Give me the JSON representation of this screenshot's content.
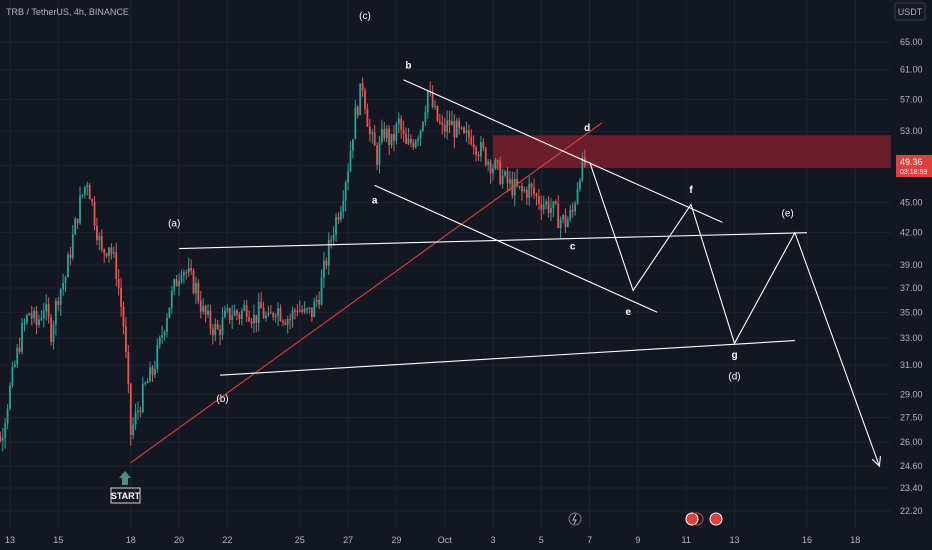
{
  "header": {
    "symbol_line": "TRB / TetherUS, 4h, BINANCE"
  },
  "price_axis": {
    "currency": "USDT",
    "current_price": "49.36",
    "countdown": "03:18:59"
  },
  "colors": {
    "background": "#131722",
    "grid": "#1f2330",
    "up": "#26a69a",
    "down": "#ef5350",
    "zone": "#7a1f2b",
    "trendline": "#e0413f",
    "pattern": "#ffffff",
    "start_arrow": "#4f8f77"
  },
  "chart_data": {
    "type": "candlestick",
    "timeframe": "4h",
    "log_scale": true,
    "ylim": [
      21.5,
      70
    ],
    "x_ticks": [
      {
        "label": "13",
        "day": 13
      },
      {
        "label": "15",
        "day": 15
      },
      {
        "label": "18",
        "day": 18
      },
      {
        "label": "20",
        "day": 20
      },
      {
        "label": "22",
        "day": 22
      },
      {
        "label": "25",
        "day": 25
      },
      {
        "label": "27",
        "day": 27
      },
      {
        "label": "29",
        "day": 29
      },
      {
        "label": "Oct",
        "day": 31
      },
      {
        "label": "3",
        "day": 33
      },
      {
        "label": "5",
        "day": 35
      },
      {
        "label": "7",
        "day": 37
      },
      {
        "label": "9",
        "day": 39
      },
      {
        "label": "11",
        "day": 41
      },
      {
        "label": "13",
        "day": 43
      },
      {
        "label": "16",
        "day": 46
      },
      {
        "label": "18",
        "day": 48
      }
    ],
    "y_ticks": [
      "65.00",
      "61.00",
      "57.00",
      "53.00",
      "49.00",
      "45.00",
      "42.00",
      "39.00",
      "37.00",
      "35.00",
      "33.00",
      "31.00",
      "29.00",
      "27.50",
      "26.00",
      "24.60",
      "23.40",
      "22.20"
    ],
    "price_path": [
      {
        "day": 12.0,
        "price": 31.5
      },
      {
        "day": 12.3,
        "price": 28.0
      },
      {
        "day": 12.6,
        "price": 26.0
      },
      {
        "day": 12.9,
        "price": 28.5
      },
      {
        "day": 13.2,
        "price": 31.0
      },
      {
        "day": 13.5,
        "price": 33.5
      },
      {
        "day": 13.8,
        "price": 35.0
      },
      {
        "day": 14.1,
        "price": 34.0
      },
      {
        "day": 14.4,
        "price": 35.5
      },
      {
        "day": 14.7,
        "price": 33.5
      },
      {
        "day": 15.0,
        "price": 36.5
      },
      {
        "day": 15.3,
        "price": 38.0
      },
      {
        "day": 15.6,
        "price": 41.5
      },
      {
        "day": 15.9,
        "price": 45.0
      },
      {
        "day": 16.2,
        "price": 47.5
      },
      {
        "day": 16.5,
        "price": 43.5
      },
      {
        "day": 16.8,
        "price": 40.0
      },
      {
        "day": 17.1,
        "price": 41.0
      },
      {
        "day": 17.4,
        "price": 38.5
      },
      {
        "day": 17.7,
        "price": 34.0
      },
      {
        "day": 18.0,
        "price": 26.5
      },
      {
        "day": 18.3,
        "price": 28.0
      },
      {
        "day": 18.6,
        "price": 29.5
      },
      {
        "day": 18.9,
        "price": 30.5
      },
      {
        "day": 19.2,
        "price": 32.5
      },
      {
        "day": 19.5,
        "price": 35.0
      },
      {
        "day": 19.8,
        "price": 37.0
      },
      {
        "day": 20.1,
        "price": 39.0
      },
      {
        "day": 20.4,
        "price": 38.0
      },
      {
        "day": 20.7,
        "price": 37.0
      },
      {
        "day": 21.0,
        "price": 35.0
      },
      {
        "day": 21.3,
        "price": 34.0
      },
      {
        "day": 21.6,
        "price": 33.5
      },
      {
        "day": 21.9,
        "price": 34.5
      },
      {
        "day": 22.2,
        "price": 35.0
      },
      {
        "day": 22.5,
        "price": 34.8
      },
      {
        "day": 22.8,
        "price": 35.5
      },
      {
        "day": 23.1,
        "price": 34.5
      },
      {
        "day": 23.4,
        "price": 35.2
      },
      {
        "day": 23.7,
        "price": 34.2
      },
      {
        "day": 24.0,
        "price": 35.5
      },
      {
        "day": 24.3,
        "price": 34.8
      },
      {
        "day": 24.6,
        "price": 34.5
      },
      {
        "day": 24.9,
        "price": 35.5
      },
      {
        "day": 25.2,
        "price": 34.8
      },
      {
        "day": 25.5,
        "price": 35.0
      },
      {
        "day": 25.8,
        "price": 36.5
      },
      {
        "day": 26.1,
        "price": 39.5
      },
      {
        "day": 26.4,
        "price": 42.5
      },
      {
        "day": 26.7,
        "price": 45.0
      },
      {
        "day": 27.0,
        "price": 49.0
      },
      {
        "day": 27.3,
        "price": 55.0
      },
      {
        "day": 27.6,
        "price": 59.0
      },
      {
        "day": 27.9,
        "price": 52.5
      },
      {
        "day": 28.2,
        "price": 50.0
      },
      {
        "day": 28.5,
        "price": 53.0
      },
      {
        "day": 28.8,
        "price": 51.5
      },
      {
        "day": 29.1,
        "price": 54.0
      },
      {
        "day": 29.4,
        "price": 51.0
      },
      {
        "day": 29.7,
        "price": 52.0
      },
      {
        "day": 30.0,
        "price": 53.5
      },
      {
        "day": 30.3,
        "price": 58.0
      },
      {
        "day": 30.6,
        "price": 55.0
      },
      {
        "day": 30.9,
        "price": 53.0
      },
      {
        "day": 31.2,
        "price": 54.0
      },
      {
        "day": 31.5,
        "price": 53.0
      },
      {
        "day": 31.8,
        "price": 52.0
      },
      {
        "day": 32.1,
        "price": 52.5
      },
      {
        "day": 32.4,
        "price": 51.0
      },
      {
        "day": 32.7,
        "price": 50.0
      },
      {
        "day": 33.0,
        "price": 49.0
      },
      {
        "day": 33.3,
        "price": 48.0
      },
      {
        "day": 33.6,
        "price": 47.0
      },
      {
        "day": 33.9,
        "price": 46.5
      },
      {
        "day": 34.2,
        "price": 46.0
      },
      {
        "day": 34.5,
        "price": 46.5
      },
      {
        "day": 34.8,
        "price": 45.5
      },
      {
        "day": 35.1,
        "price": 45.0
      },
      {
        "day": 35.4,
        "price": 44.5
      },
      {
        "day": 35.7,
        "price": 43.5
      },
      {
        "day": 36.0,
        "price": 43.0
      },
      {
        "day": 36.3,
        "price": 44.0
      },
      {
        "day": 36.6,
        "price": 48.5
      },
      {
        "day": 36.9,
        "price": 49.4
      }
    ],
    "resistance_zone": [
      48.7,
      52.5
    ],
    "trendline": {
      "from": {
        "day": 18.0,
        "price": 24.8
      },
      "to": {
        "day": 37.5,
        "price": 54.0
      }
    },
    "triangle_upper": {
      "from": {
        "day": 20.0,
        "price": 40.5
      },
      "to": {
        "day": 46.0,
        "price": 42.0
      }
    },
    "triangle_lower": {
      "from": {
        "day": 21.7,
        "price": 30.3
      },
      "to": {
        "day": 45.5,
        "price": 32.8
      }
    },
    "channel_upper": {
      "from": {
        "day": 29.3,
        "price": 59.6
      },
      "to": {
        "day": 42.5,
        "price": 43.0
      }
    },
    "channel_lower": {
      "from": {
        "day": 28.1,
        "price": 46.8
      },
      "to": {
        "day": 39.8,
        "price": 35.0
      }
    },
    "projection": [
      {
        "day": 37.0,
        "price": 49.4
      },
      {
        "day": 38.8,
        "price": 36.8
      },
      {
        "day": 41.2,
        "price": 44.8
      },
      {
        "day": 43.0,
        "price": 32.6
      },
      {
        "day": 45.5,
        "price": 42.0
      },
      {
        "day": 49.0,
        "price": 24.6
      }
    ],
    "wave_labels": [
      {
        "text": "(c)",
        "day": 27.7,
        "price": 68.5
      },
      {
        "text": "b",
        "day": 29.5,
        "price": 61.2
      },
      {
        "text": "a",
        "day": 28.1,
        "price": 44.9
      },
      {
        "text": "d",
        "day": 36.9,
        "price": 53.0
      },
      {
        "text": "c",
        "day": 36.3,
        "price": 40.4
      },
      {
        "text": "(a)",
        "day": 19.8,
        "price": 42.6
      },
      {
        "text": "(b)",
        "day": 21.8,
        "price": 28.5
      },
      {
        "text": "e",
        "day": 38.6,
        "price": 34.8
      },
      {
        "text": "f",
        "day": 41.2,
        "price": 46.0
      },
      {
        "text": "(e)",
        "day": 45.2,
        "price": 43.6
      },
      {
        "text": "g",
        "day": 43.0,
        "price": 31.5
      },
      {
        "text": "(d)",
        "day": 43.0,
        "price": 30.0
      }
    ],
    "start_label": "START"
  }
}
